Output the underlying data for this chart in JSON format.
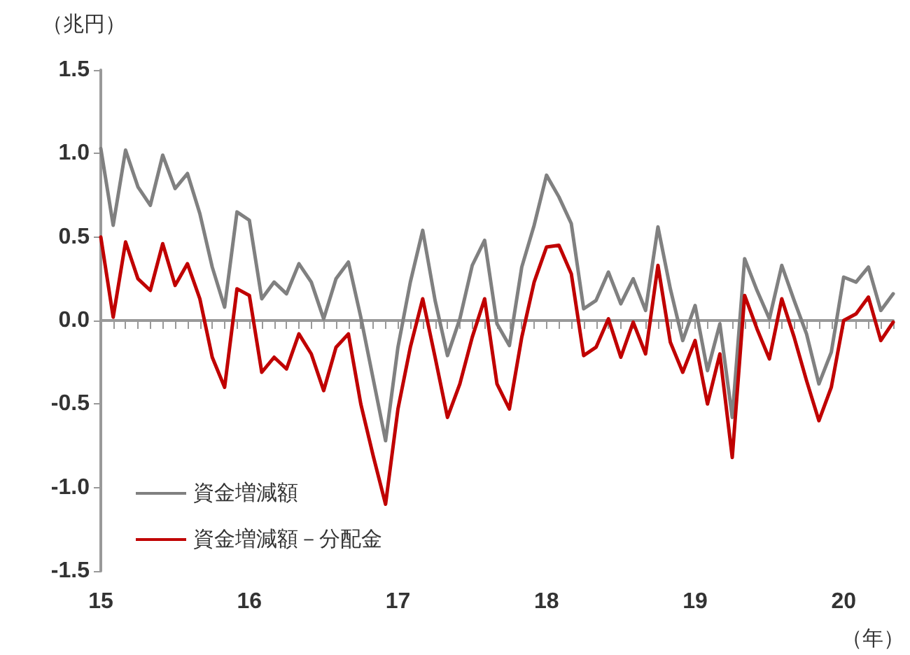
{
  "chart_data": {
    "type": "line",
    "ylabel": "（兆円）",
    "xlabel": "（年）",
    "categories": [
      "15",
      null,
      null,
      null,
      null,
      null,
      null,
      null,
      null,
      null,
      null,
      null,
      "16",
      null,
      null,
      null,
      null,
      null,
      null,
      null,
      null,
      null,
      null,
      null,
      "17",
      null,
      null,
      null,
      null,
      null,
      null,
      null,
      null,
      null,
      null,
      null,
      "18",
      null,
      null,
      null,
      null,
      null,
      null,
      null,
      null,
      null,
      null,
      null,
      "19",
      null,
      null,
      null,
      null,
      null,
      null,
      null,
      null,
      null,
      null,
      null,
      "20",
      null,
      null,
      null,
      null
    ],
    "series": [
      {
        "name": "資金増減額",
        "color": "#808080",
        "values": [
          1.03,
          0.57,
          1.02,
          0.8,
          0.69,
          0.99,
          0.79,
          0.88,
          0.64,
          0.32,
          0.08,
          0.65,
          0.6,
          0.13,
          0.23,
          0.16,
          0.34,
          0.23,
          0.01,
          0.25,
          0.35,
          0.02,
          -0.35,
          -0.72,
          -0.16,
          0.23,
          0.54,
          0.12,
          -0.21,
          0.01,
          0.33,
          0.48,
          -0.02,
          -0.15,
          0.32,
          0.57,
          0.87,
          0.74,
          0.58,
          0.07,
          0.12,
          0.29,
          0.1,
          0.25,
          0.06,
          0.56,
          0.19,
          -0.12,
          0.09,
          -0.3,
          -0.02,
          -0.58,
          0.37,
          0.18,
          0.01,
          0.33,
          0.12,
          -0.08,
          -0.38,
          -0.19,
          0.26,
          0.23,
          0.32,
          0.06,
          0.16
        ]
      },
      {
        "name": "資金増減額－分配金",
        "color": "#c00000",
        "values": [
          0.5,
          0.02,
          0.47,
          0.25,
          0.18,
          0.46,
          0.21,
          0.34,
          0.13,
          -0.22,
          -0.4,
          0.19,
          0.15,
          -0.31,
          -0.22,
          -0.29,
          -0.08,
          -0.2,
          -0.42,
          -0.16,
          -0.08,
          -0.5,
          -0.81,
          -1.1,
          -0.53,
          -0.16,
          0.13,
          -0.22,
          -0.58,
          -0.38,
          -0.1,
          0.13,
          -0.38,
          -0.53,
          -0.1,
          0.23,
          0.44,
          0.45,
          0.28,
          -0.21,
          -0.16,
          0.01,
          -0.22,
          -0.01,
          -0.2,
          0.33,
          -0.13,
          -0.31,
          -0.12,
          -0.5,
          -0.2,
          -0.82,
          0.15,
          -0.05,
          -0.23,
          0.13,
          -0.1,
          -0.36,
          -0.6,
          -0.4,
          0.0,
          0.04,
          0.14,
          -0.12,
          -0.01
        ]
      }
    ],
    "ylim": [
      -1.5,
      1.5
    ],
    "yticks": [
      {
        "value": -1.5,
        "label": "-1.5"
      },
      {
        "value": -1.0,
        "label": "-1.0"
      },
      {
        "value": -0.5,
        "label": "-0.5"
      },
      {
        "value": 0,
        "label": "0.0"
      },
      {
        "value": 0.5,
        "label": "0.5"
      },
      {
        "value": 1.0,
        "label": "1.0"
      },
      {
        "value": 1.5,
        "label": "1.5"
      }
    ],
    "legend": "bottom left",
    "marker": "none",
    "line_style": "solid"
  }
}
